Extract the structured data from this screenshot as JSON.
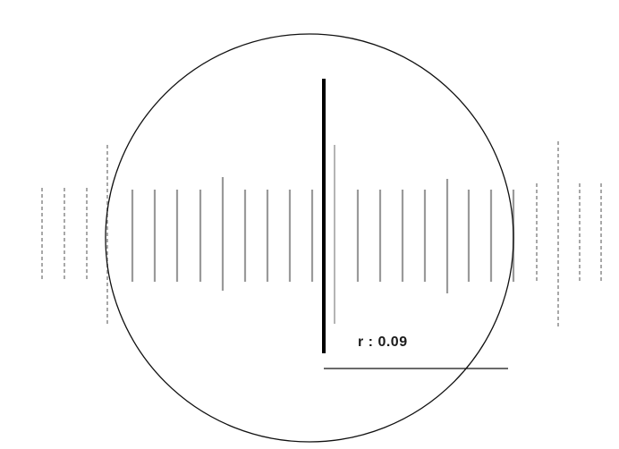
{
  "readout": {
    "prefix": "r",
    "separator": " : ",
    "value": "0.09",
    "text": "r : 0.09"
  },
  "colors": {
    "background": "#ffffff",
    "stripes": "#9a9a9a",
    "dashed_stripes": "#a8a8a8",
    "circle": "#111111",
    "marker": "#000000"
  }
}
